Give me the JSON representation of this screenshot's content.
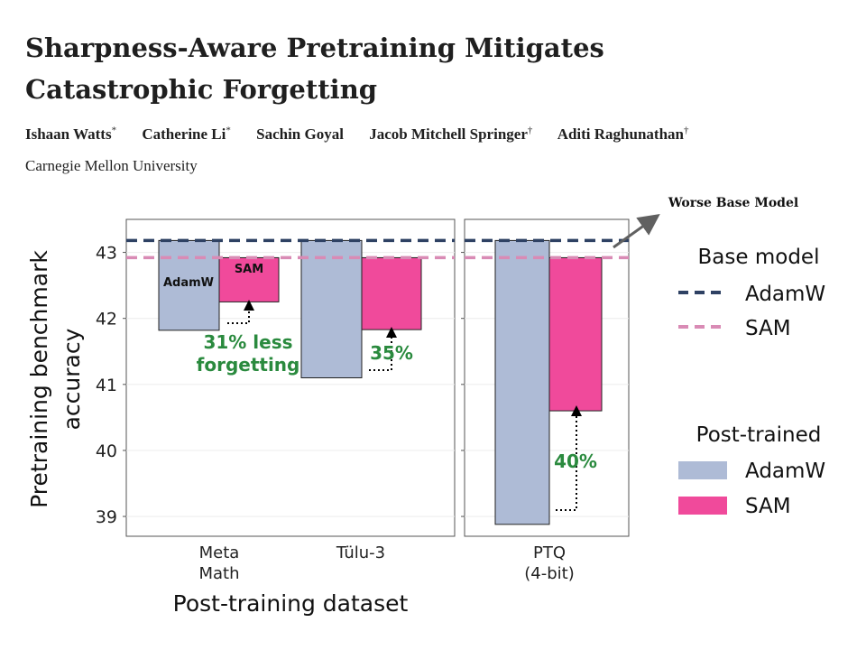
{
  "paper": {
    "title_line1": "Sharpness-Aware Pretraining Mitigates",
    "title_line2": "Catastrophic Forgetting",
    "authors": [
      {
        "name": "Ishaan Watts",
        "mark": "*"
      },
      {
        "name": "Catherine Li",
        "mark": "*"
      },
      {
        "name": "Sachin Goyal",
        "mark": ""
      },
      {
        "name": "Jacob Mitchell Springer",
        "mark": "†"
      },
      {
        "name": "Aditi Raghunathan",
        "mark": "†"
      }
    ],
    "affiliation": "Carnegie Mellon University"
  },
  "chart_data": {
    "type": "bar",
    "xlabel": "Post-training dataset",
    "ylabel": "Pretraining benchmark accuracy",
    "ylim": [
      38.7,
      43.5
    ],
    "yticks": [
      39,
      40,
      41,
      42,
      43
    ],
    "panels": [
      {
        "categories": [
          {
            "line1": "Meta",
            "line2": "Math"
          },
          {
            "line1": "Tülu-3",
            "line2": ""
          }
        ]
      },
      {
        "categories": [
          {
            "line1": "PTQ",
            "line2": "(4-bit)"
          }
        ]
      }
    ],
    "base_model": {
      "AdamW": 43.18,
      "SAM": 42.92
    },
    "series": [
      {
        "name": "AdamW",
        "values": [
          41.82,
          41.1,
          38.88
        ],
        "color": "#aebbd6"
      },
      {
        "name": "SAM",
        "values": [
          42.25,
          41.83,
          40.6
        ],
        "color": "#f04a9b"
      }
    ],
    "bar_labels": {
      "adamw_label": "AdamW",
      "sam_label": "SAM"
    },
    "annotations": {
      "metamath_line1": "31% less",
      "metamath_line2": "forgetting",
      "tulu": "35%",
      "ptq": "40%",
      "worse_base": "Worse Base Model"
    },
    "legend": {
      "base_title": "Base model",
      "base_items": [
        {
          "label": "AdamW",
          "color": "#2e4163"
        },
        {
          "label": "SAM",
          "color": "#d98bb5"
        }
      ],
      "post_title": "Post-trained",
      "post_items": [
        {
          "label": "AdamW",
          "color": "#aebbd6"
        },
        {
          "label": "SAM",
          "color": "#f04a9b"
        }
      ],
      "placement": "right"
    },
    "annotation_color": "#2a8a3e",
    "grid": true
  }
}
